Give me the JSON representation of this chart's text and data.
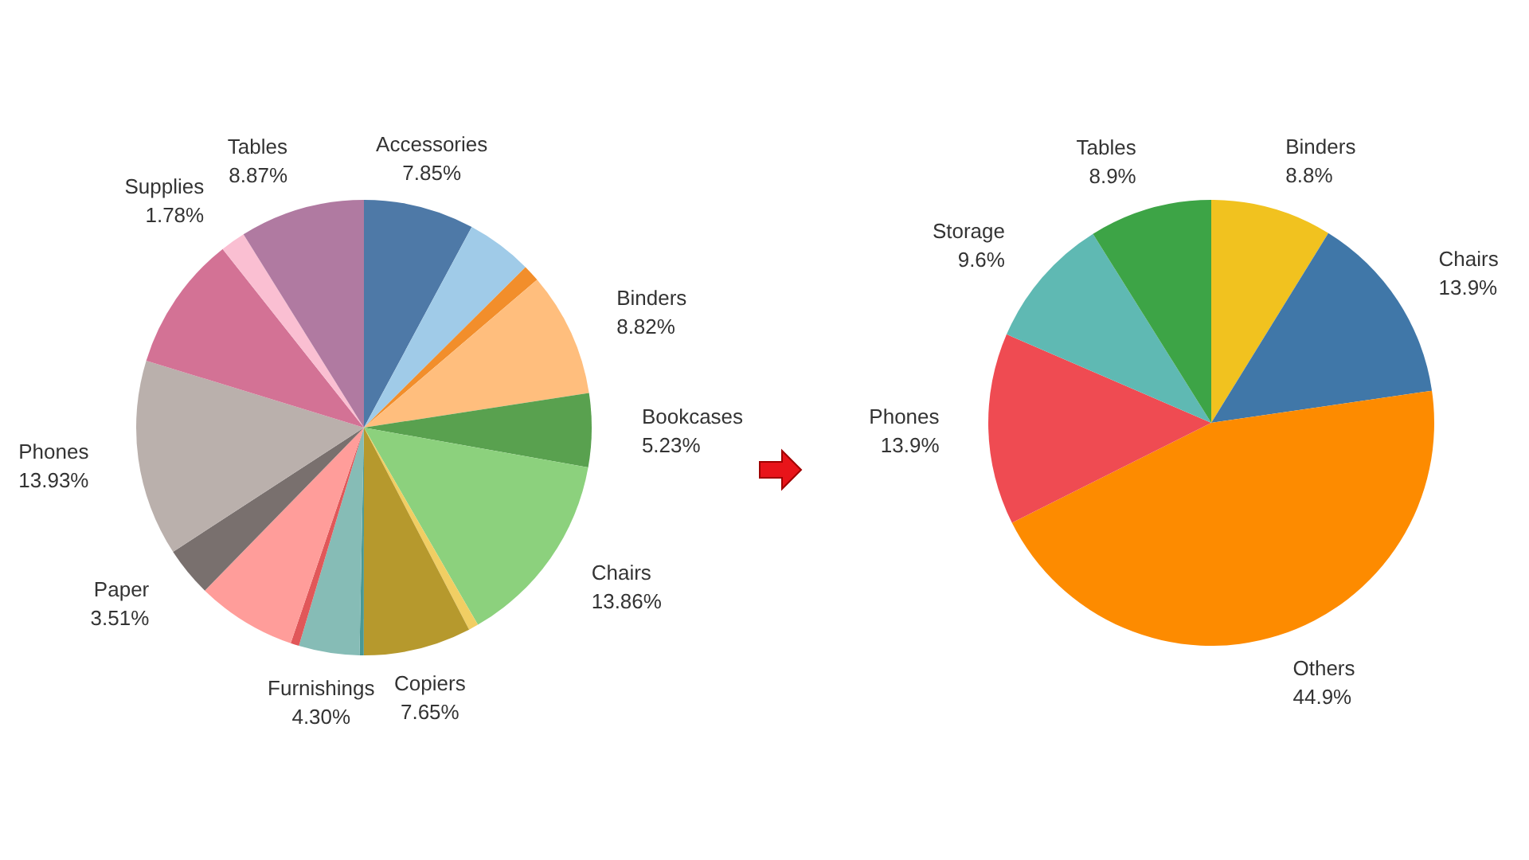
{
  "chart_data": [
    {
      "type": "pie",
      "categories": [
        "Accessories",
        null,
        null,
        "Binders",
        "Bookcases",
        "Chairs",
        null,
        "Copiers",
        null,
        "Furnishings",
        null,
        null,
        "Paper",
        "Phones",
        null,
        "Supplies",
        "Tables"
      ],
      "values": [
        7.85,
        4.7,
        1.2,
        8.82,
        5.23,
        13.86,
        0.7,
        7.65,
        0.3,
        4.3,
        0.6,
        7.1,
        3.51,
        13.93,
        9.6,
        1.78,
        8.87
      ],
      "value_labels": [
        "7.85%",
        null,
        null,
        "8.82%",
        "5.23%",
        "13.86%",
        null,
        "7.65%",
        null,
        "4.30%",
        null,
        null,
        "3.51%",
        "13.93%",
        null,
        "1.78%",
        "8.87%"
      ],
      "colors": [
        "#4e79a7",
        "#a0cbe8",
        "#f28e2b",
        "#ffbe7d",
        "#59a14f",
        "#8cd17d",
        "#f1ce63",
        "#b6992d",
        "#499894",
        "#86bcb6",
        "#e15759",
        "#ff9d9a",
        "#79706e",
        "#bab0ac",
        "#d37295",
        "#fabfd2",
        "#b07aa1"
      ]
    },
    {
      "type": "pie",
      "categories": [
        "Binders",
        "Chairs",
        "Others",
        "Phones",
        "Storage",
        "Tables"
      ],
      "values": [
        8.8,
        13.9,
        44.9,
        13.9,
        9.6,
        8.9
      ],
      "value_labels": [
        "8.8%",
        "13.9%",
        "44.9%",
        "13.9%",
        "9.6%",
        "8.9%"
      ],
      "colors": [
        "#f1c21f",
        "#4077a8",
        "#fd8b00",
        "#ef4b52",
        "#5fb9b3",
        "#3da446"
      ]
    }
  ]
}
